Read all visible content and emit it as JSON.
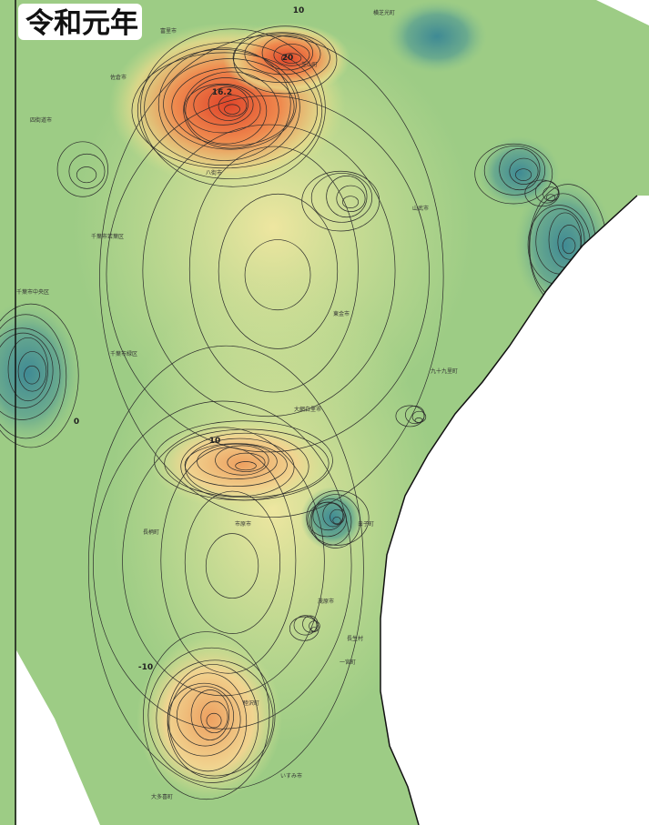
{
  "title": "令和元年",
  "contour_labels": [
    {
      "text": "16.2",
      "pos": "peak"
    },
    {
      "text": "20",
      "pos": "north"
    },
    {
      "text": "10",
      "pos": "top"
    },
    {
      "text": "10",
      "pos": "middle"
    },
    {
      "text": "-10",
      "pos": "south"
    },
    {
      "text": "0",
      "pos": "west"
    }
  ],
  "places": [
    "八街市",
    "山武市",
    "東金市",
    "九十九里町",
    "大網白里市",
    "白子町",
    "長柄町",
    "茂原市",
    "長生村",
    "睦沢町",
    "一宮町",
    "いすみ市",
    "大多喜町",
    "千葉市若葉区",
    "千葉市緑区",
    "千葉市中央区",
    "四街道市",
    "佐倉市",
    "富里市",
    "芝山町",
    "横芝光町",
    "市原市"
  ]
}
